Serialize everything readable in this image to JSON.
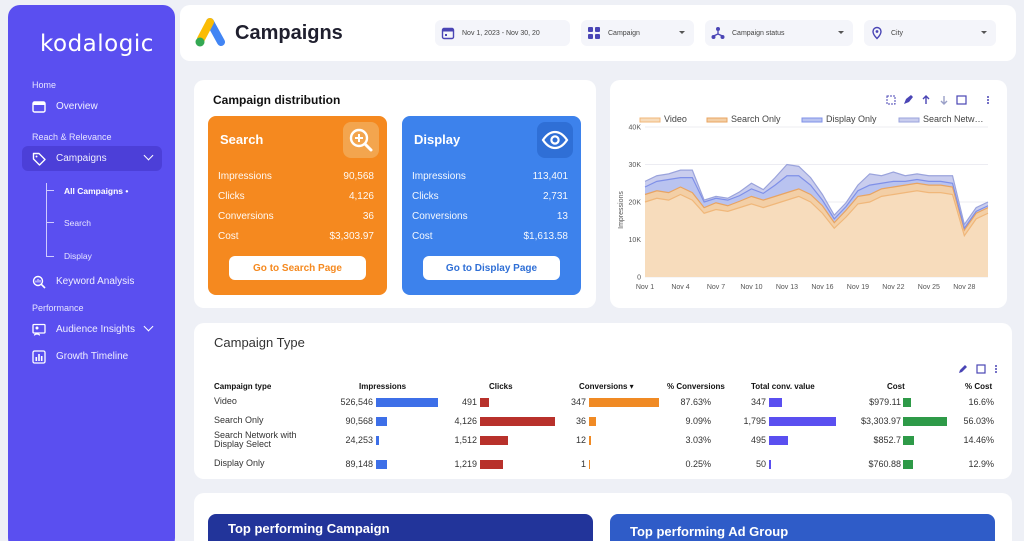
{
  "brand": "kodalogic",
  "sidebar": {
    "sections": [
      "Home",
      "Reach & Relevance",
      "Performance"
    ],
    "items": [
      {
        "label": "Overview"
      },
      {
        "label": "Campaigns"
      },
      {
        "label": "Keyword Analysis"
      },
      {
        "label": "Audience Insights"
      },
      {
        "label": "Growth Timeline"
      }
    ],
    "subitems": [
      "All Campaigns •",
      "Search",
      "Display"
    ]
  },
  "header": {
    "title": "Campaigns",
    "filters": {
      "date": "Nov 1, 2023 - Nov 30, 20",
      "campaign": "Campaign",
      "status": "Campaign status",
      "city": "City"
    }
  },
  "distribution": {
    "title": "Campaign distribution",
    "search": {
      "title": "Search",
      "color": "#f5891f",
      "rows": [
        {
          "label": "Impressions",
          "value": "90,568"
        },
        {
          "label": "Clicks",
          "value": "4,126"
        },
        {
          "label": "Conversions",
          "value": "36"
        },
        {
          "label": "Cost",
          "value": "$3,303.97"
        }
      ],
      "button": "Go to Search Page"
    },
    "display": {
      "title": "Display",
      "color": "#3d82ec",
      "rows": [
        {
          "label": "Impressions",
          "value": "113,401"
        },
        {
          "label": "Clicks",
          "value": "2,731"
        },
        {
          "label": "Conversions",
          "value": "13"
        },
        {
          "label": "Cost",
          "value": "$1,613.58"
        }
      ],
      "button": "Go to Display Page"
    }
  },
  "chart_data": {
    "type": "area",
    "stacked": true,
    "ylabel": "Impressions",
    "ylim": [
      0,
      40000
    ],
    "yticks": [
      "0",
      "10K",
      "20K",
      "30K",
      "40K"
    ],
    "x": [
      "Nov 1",
      "Nov 2",
      "Nov 3",
      "Nov 4",
      "Nov 5",
      "Nov 6",
      "Nov 7",
      "Nov 8",
      "Nov 9",
      "Nov 10",
      "Nov 11",
      "Nov 12",
      "Nov 13",
      "Nov 14",
      "Nov 15",
      "Nov 16",
      "Nov 17",
      "Nov 18",
      "Nov 19",
      "Nov 20",
      "Nov 21",
      "Nov 22",
      "Nov 23",
      "Nov 24",
      "Nov 25",
      "Nov 26",
      "Nov 27",
      "Nov 28",
      "Nov 29",
      "Nov 30"
    ],
    "xticks": [
      "Nov 1",
      "Nov 4",
      "Nov 7",
      "Nov 10",
      "Nov 13",
      "Nov 16",
      "Nov 19",
      "Nov 22",
      "Nov 25",
      "Nov 28"
    ],
    "legend": "top",
    "series": [
      {
        "name": "Video",
        "color": "#f0b77a",
        "fill": "#f7dcbc",
        "values": [
          20000,
          21000,
          20500,
          22000,
          20500,
          17000,
          18000,
          17500,
          18500,
          19500,
          18500,
          19500,
          20500,
          21500,
          20000,
          17000,
          13000,
          16000,
          19500,
          20000,
          21500,
          22000,
          22500,
          23000,
          22500,
          22500,
          22000,
          11000,
          15500,
          17000
        ]
      },
      {
        "name": "Search Only",
        "color": "#e8a462",
        "fill": "#f3cfa6",
        "values": [
          2000,
          2000,
          2000,
          2000,
          2000,
          1500,
          1800,
          1500,
          1700,
          2000,
          2000,
          2000,
          2000,
          2000,
          2000,
          2000,
          1500,
          1800,
          2000,
          2000,
          2000,
          2000,
          2000,
          2000,
          2000,
          2000,
          2000,
          1500,
          1500,
          1500
        ]
      },
      {
        "name": "Display Only",
        "color": "#7f90e8",
        "fill": "#b9c3f0",
        "values": [
          2000,
          2500,
          3500,
          2500,
          4000,
          1500,
          1200,
          1500,
          1500,
          2000,
          1800,
          3000,
          4500,
          3500,
          2500,
          1500,
          1000,
          1000,
          1500,
          2500,
          1500,
          1500,
          1000,
          1000,
          1000,
          1000,
          1000,
          500,
          500,
          500
        ]
      },
      {
        "name": "Search Netw…",
        "color": "#9aa3dc",
        "fill": "#c9cdee",
        "values": [
          1500,
          1500,
          1500,
          2000,
          2000,
          500,
          500,
          500,
          1000,
          1500,
          1000,
          2000,
          3000,
          2500,
          2000,
          1500,
          1000,
          1000,
          1500,
          3000,
          2000,
          2500,
          1500,
          1500,
          1500,
          1500,
          2000,
          1000,
          1000,
          1000
        ]
      }
    ]
  },
  "campaign_type": {
    "title": "Campaign Type",
    "columns": [
      "Campaign type",
      "Impressions",
      "Clicks",
      "Conversions ▾",
      "% Conversions",
      "Total conv. value",
      "Cost",
      "% Cost"
    ],
    "rows": [
      {
        "type": "Video",
        "impressions": "526,546",
        "imp_frac": 1.0,
        "clicks": "491",
        "clk_frac": 0.12,
        "conv": "347",
        "conv_frac": 1.0,
        "pconv": "87.63%",
        "value": "347",
        "val_frac": 0.19,
        "cost": "$979.11",
        "cost_frac": 0.18,
        "pcost": "16.6%"
      },
      {
        "type": "Search Only",
        "impressions": "90,568",
        "imp_frac": 0.17,
        "clicks": "4,126",
        "clk_frac": 1.0,
        "conv": "36",
        "conv_frac": 0.1,
        "pconv": "9.09%",
        "value": "1,795",
        "val_frac": 1.0,
        "cost": "$3,303.97",
        "cost_frac": 1.0,
        "pcost": "56.03%"
      },
      {
        "type": "Search Network with Display Select",
        "impressions": "24,253",
        "imp_frac": 0.05,
        "clicks": "1,512",
        "clk_frac": 0.37,
        "conv": "12",
        "conv_frac": 0.035,
        "pconv": "3.03%",
        "value": "495",
        "val_frac": 0.28,
        "cost": "$852.7",
        "cost_frac": 0.26,
        "pcost": "14.46%"
      },
      {
        "type": "Display Only",
        "impressions": "89,148",
        "imp_frac": 0.17,
        "clicks": "1,219",
        "clk_frac": 0.3,
        "conv": "1",
        "conv_frac": 0.01,
        "pconv": "0.25%",
        "value": "50",
        "val_frac": 0.03,
        "cost": "$760.88",
        "cost_frac": 0.23,
        "pcost": "12.9%"
      }
    ]
  },
  "top": {
    "campaign": "Top performing Campaign",
    "ad_group": "Top performing Ad Group"
  }
}
